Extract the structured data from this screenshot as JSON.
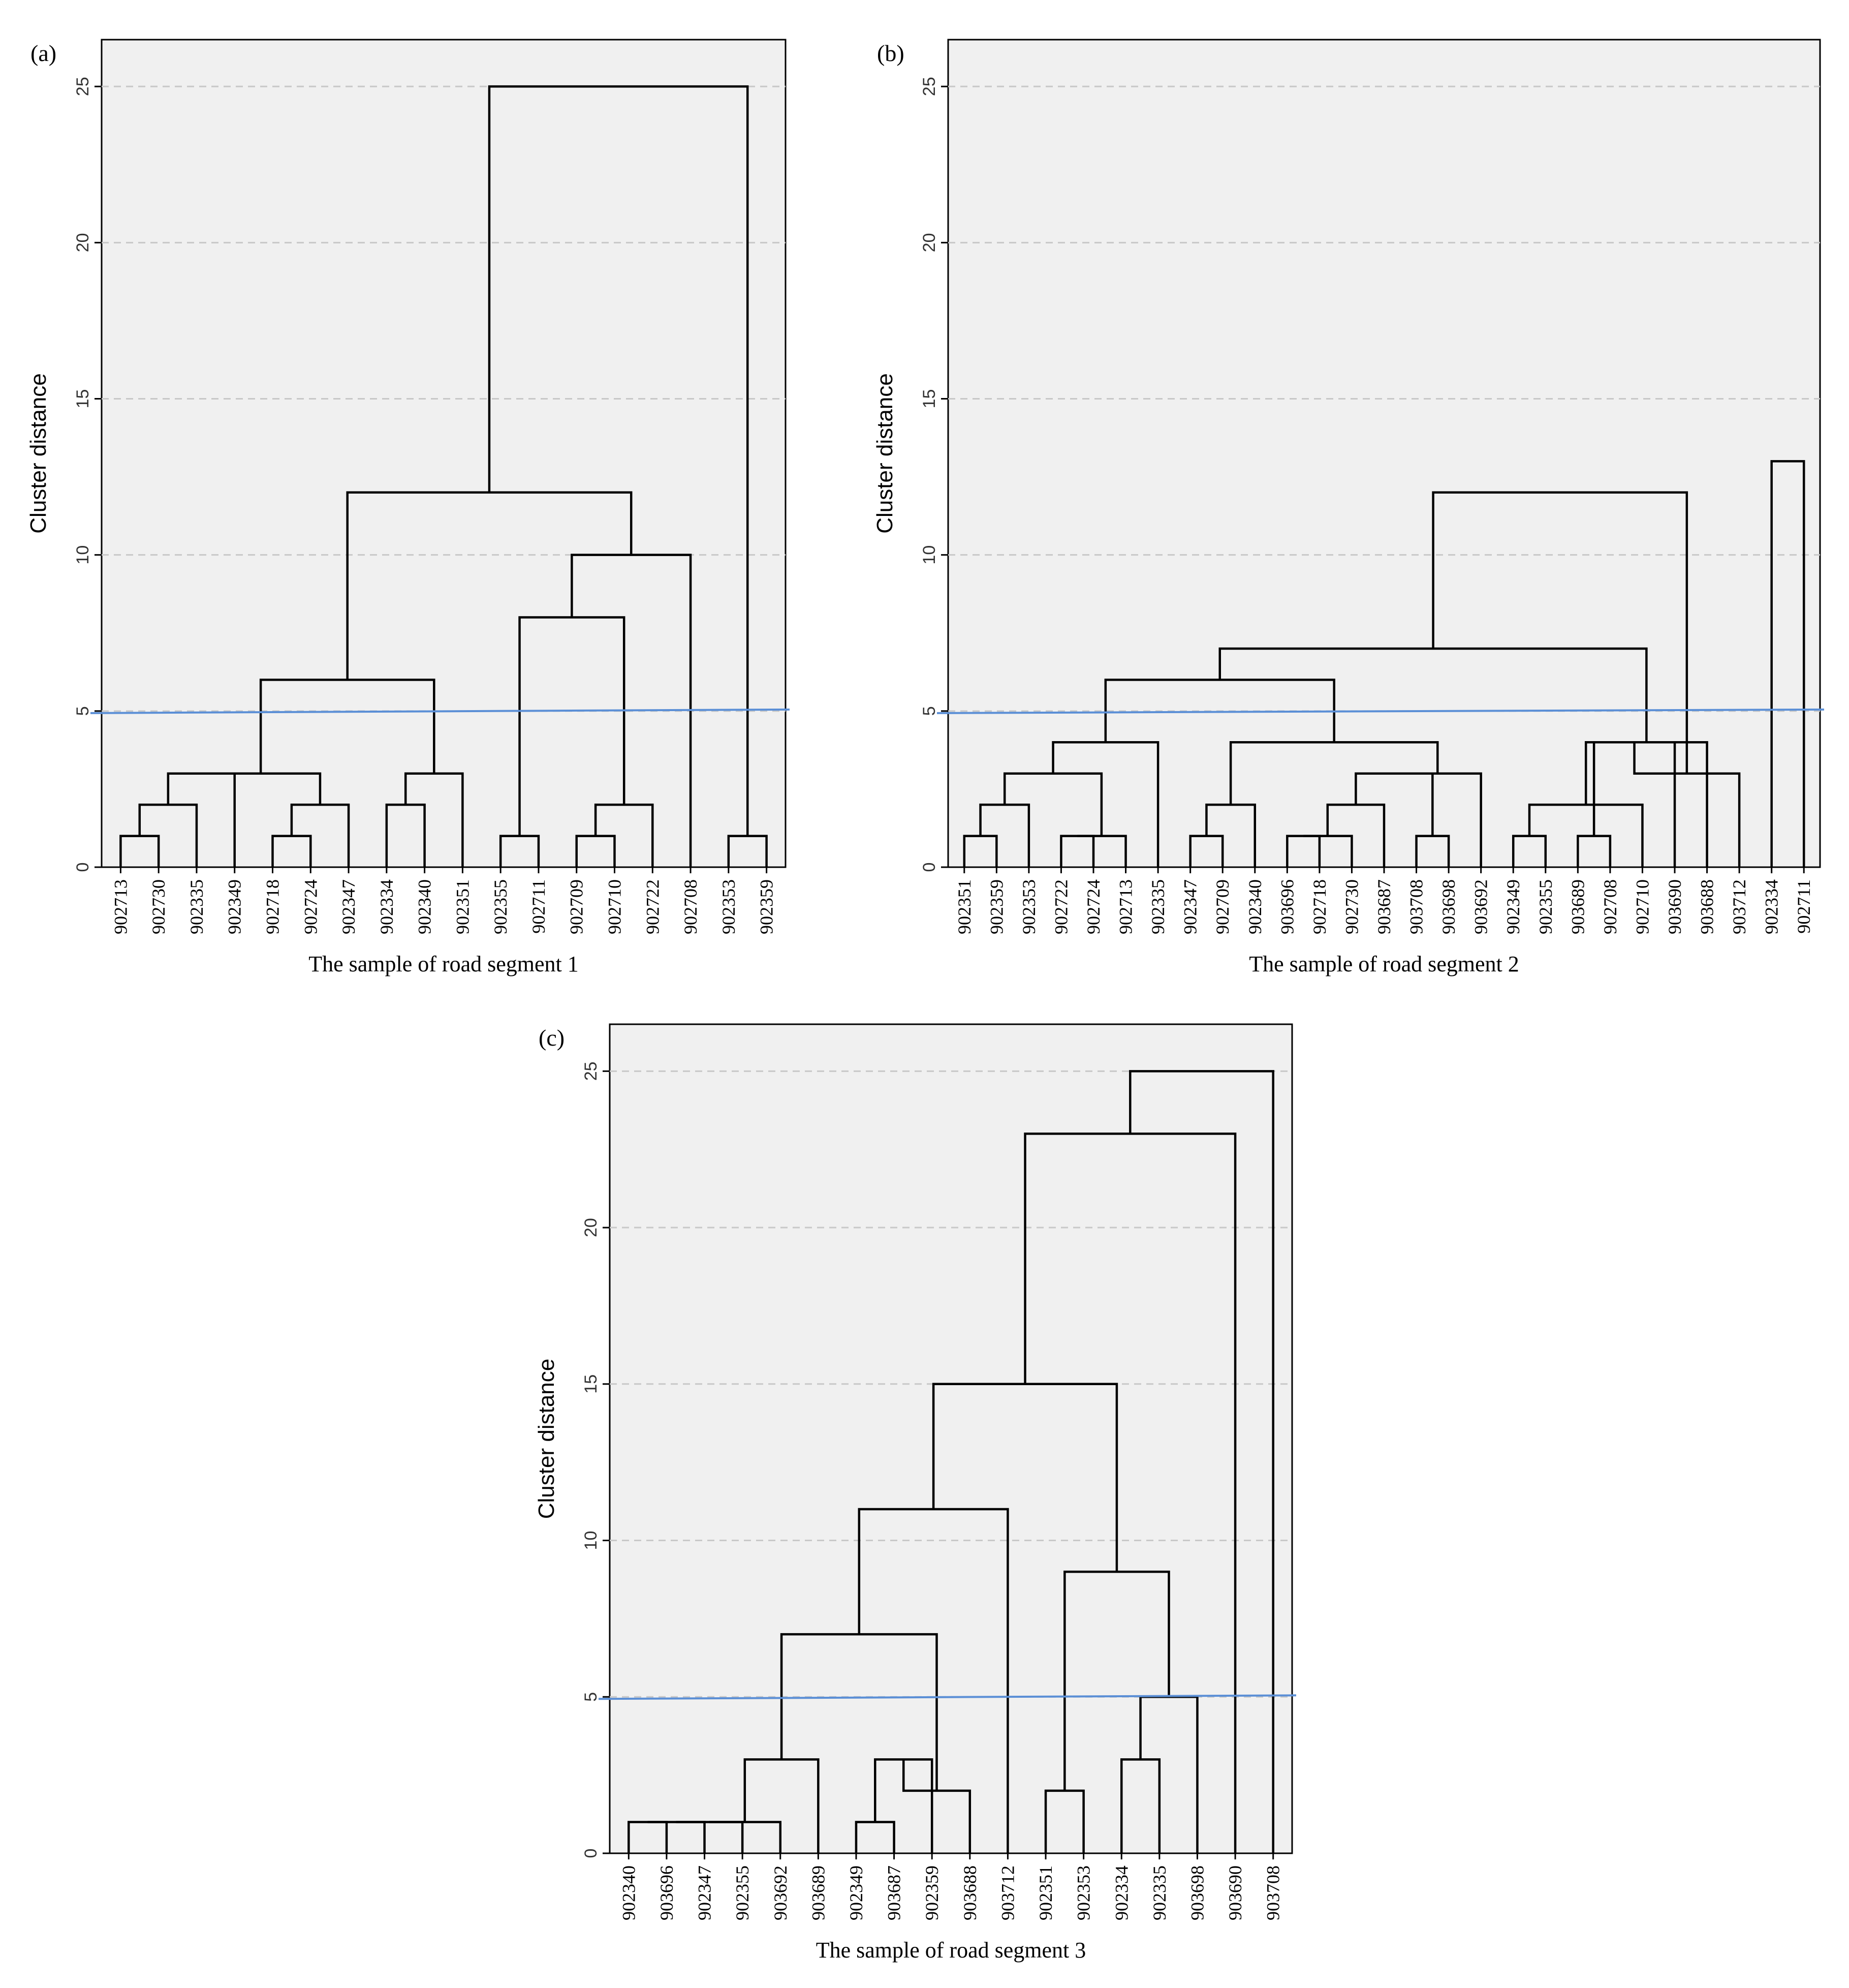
{
  "chart_data": [
    {
      "type": "dendrogram",
      "panel_label": "(a)",
      "xlabel": "The sample of road segment 1",
      "ylabel": "Cluster distance",
      "ylim": [
        0,
        26.5
      ],
      "yticks": [
        0,
        5,
        10,
        15,
        20,
        25
      ],
      "grid": "horizontal dashed",
      "threshold": 5,
      "leaves": [
        "902713",
        "902730",
        "902335",
        "902349",
        "902718",
        "902724",
        "902347",
        "902334",
        "902340",
        "902351",
        "902355",
        "902711",
        "902709",
        "902710",
        "902722",
        "902708",
        "902353",
        "902359"
      ],
      "merges": [
        [
          0,
          1,
          1
        ],
        [
          18,
          2,
          2
        ],
        [
          19,
          3,
          3
        ],
        [
          4,
          5,
          1
        ],
        [
          21,
          6,
          2
        ],
        [
          20,
          22,
          3
        ],
        [
          7,
          8,
          2
        ],
        [
          24,
          9,
          3
        ],
        [
          23,
          25,
          6
        ],
        [
          10,
          11,
          1
        ],
        [
          12,
          13,
          1
        ],
        [
          28,
          14,
          2
        ],
        [
          27,
          29,
          8
        ],
        [
          30,
          15,
          10
        ],
        [
          26,
          31,
          12
        ],
        [
          16,
          17,
          1
        ],
        [
          32,
          33,
          25
        ]
      ]
    },
    {
      "type": "dendrogram",
      "panel_label": "(b)",
      "xlabel": "The sample of road segment 2",
      "ylabel": "Cluster distance",
      "ylim": [
        0,
        26.5
      ],
      "yticks": [
        0,
        5,
        10,
        15,
        20,
        25
      ],
      "grid": "horizontal dashed",
      "threshold": 5,
      "leaves": [
        "902351",
        "902359",
        "902353",
        "902722",
        "902724",
        "902713",
        "902335",
        "902347",
        "902709",
        "902340",
        "903696",
        "902718",
        "902730",
        "903687",
        "903708",
        "903698",
        "903692",
        "902349",
        "902355",
        "903689",
        "902708",
        "902710",
        "903690",
        "903688",
        "903712",
        "902334",
        "902711"
      ],
      "merges": [
        [
          0,
          1,
          1
        ],
        [
          27,
          2,
          2
        ],
        [
          3,
          4,
          1
        ],
        [
          29,
          5,
          1
        ],
        [
          28,
          30,
          3
        ],
        [
          31,
          6,
          4
        ],
        [
          7,
          8,
          1
        ],
        [
          33,
          9,
          2
        ],
        [
          10,
          11,
          1
        ],
        [
          35,
          12,
          1
        ],
        [
          36,
          13,
          2
        ],
        [
          14,
          15,
          1
        ],
        [
          37,
          38,
          3
        ],
        [
          39,
          16,
          3
        ],
        [
          34,
          40,
          4
        ],
        [
          32,
          41,
          6
        ],
        [
          17,
          18,
          1
        ],
        [
          19,
          20,
          1
        ],
        [
          43,
          21,
          2
        ],
        [
          44,
          22,
          4
        ],
        [
          45,
          23,
          4
        ],
        [
          46,
          24,
          3
        ],
        [
          42,
          47,
          7
        ],
        [
          25,
          26,
          13
        ],
        [
          48,
          49,
          12
        ]
      ]
    },
    {
      "type": "dendrogram",
      "panel_label": "(c)",
      "xlabel": "The sample of road segment 3",
      "ylabel": "Cluster distance",
      "ylim": [
        0,
        26.5
      ],
      "yticks": [
        0,
        5,
        10,
        15,
        20,
        25
      ],
      "grid": "horizontal dashed",
      "threshold": 5,
      "leaves": [
        "902340",
        "903696",
        "902347",
        "902355",
        "903692",
        "903689",
        "902349",
        "903687",
        "902359",
        "903688",
        "903712",
        "902351",
        "902353",
        "902334",
        "902335",
        "903698",
        "903690",
        "903708"
      ],
      "merges": [
        [
          0,
          1,
          1
        ],
        [
          18,
          2,
          1
        ],
        [
          19,
          3,
          1
        ],
        [
          20,
          4,
          1
        ],
        [
          21,
          5,
          3
        ],
        [
          6,
          7,
          1
        ],
        [
          23,
          8,
          3
        ],
        [
          9,
          24,
          2
        ],
        [
          22,
          25,
          7
        ],
        [
          26,
          10,
          11
        ],
        [
          11,
          12,
          2
        ],
        [
          13,
          14,
          3
        ],
        [
          29,
          15,
          5
        ],
        [
          28,
          30,
          9
        ],
        [
          27,
          31,
          15
        ],
        [
          32,
          16,
          23
        ],
        [
          33,
          17,
          25
        ]
      ]
    }
  ]
}
